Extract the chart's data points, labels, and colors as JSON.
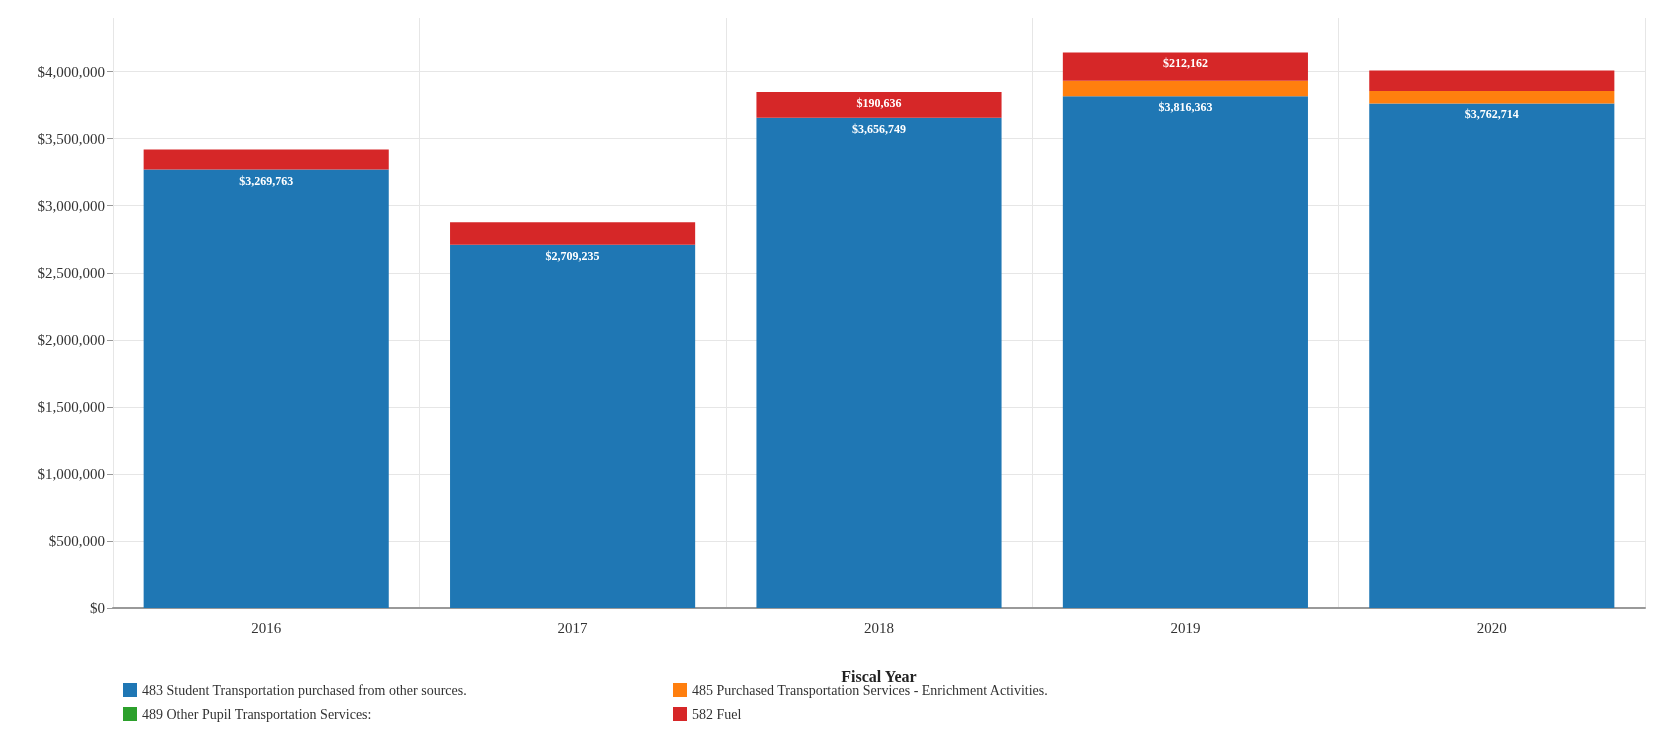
{
  "chart_data": {
    "type": "bar",
    "stacked": true,
    "xlabel": "Fiscal Year",
    "categories": [
      "2016",
      "2017",
      "2018",
      "2019",
      "2020"
    ],
    "series": [
      {
        "name": "483 Student Transportation purchased from other sources.",
        "color": "#1f77b4",
        "values": [
          3269763,
          2709235,
          3656749,
          3816363,
          3762714
        ],
        "value_labels": [
          "$3,269,763",
          "$2,709,235",
          "$3,656,749",
          "$3,816,363",
          "$3,762,714"
        ]
      },
      {
        "name": "485 Purchased Transportation Services - Enrichment Activities.",
        "color": "#ff7f0e",
        "values": [
          null,
          null,
          null,
          115000,
          92000
        ]
      },
      {
        "name": "489 Other Pupil Transportation Services:",
        "color": "#2ca02c",
        "values": [
          null,
          null,
          null,
          null,
          null
        ]
      },
      {
        "name": "582 Fuel",
        "color": "#d62728",
        "values": [
          149000,
          167000,
          190636,
          212162,
          153000
        ],
        "value_labels": [
          null,
          null,
          "$190,636",
          "$212,162",
          null
        ]
      }
    ],
    "ylim": [
      0,
      4400000
    ],
    "yticks": [
      {
        "value": 0,
        "label": "$0"
      },
      {
        "value": 500000,
        "label": "$500,000"
      },
      {
        "value": 1000000,
        "label": "$1,000,000"
      },
      {
        "value": 1500000,
        "label": "$1,500,000"
      },
      {
        "value": 2000000,
        "label": "$2,000,000"
      },
      {
        "value": 2500000,
        "label": "$2,500,000"
      },
      {
        "value": 3000000,
        "label": "$3,000,000"
      },
      {
        "value": 3500000,
        "label": "$3,500,000"
      },
      {
        "value": 4000000,
        "label": "$4,000,000"
      }
    ],
    "grid": true,
    "legend": "bottom left"
  }
}
